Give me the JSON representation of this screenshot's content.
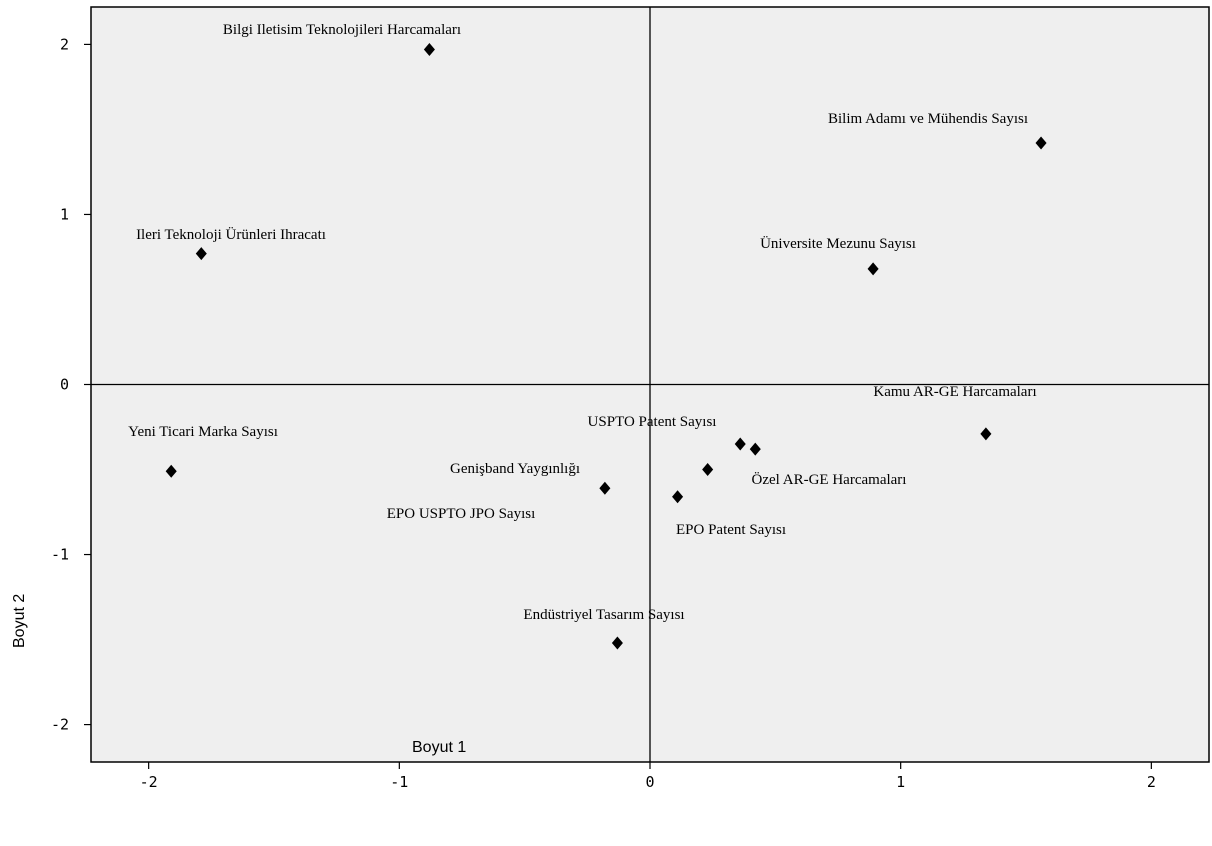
{
  "chart_data": {
    "type": "scatter",
    "xlabel": "Boyut 1",
    "ylabel": "Boyut 2",
    "xlim": [
      -2.23,
      2.23
    ],
    "ylim": [
      -2.22,
      2.22
    ],
    "x_ticks": [
      -2,
      -1,
      0,
      1,
      2
    ],
    "y_ticks": [
      -2,
      -1,
      0,
      1,
      2
    ],
    "x_tick_labels": [
      "-2",
      "-1",
      "0",
      "1",
      "2"
    ],
    "y_tick_labels": [
      "-2",
      "-1",
      "0",
      "1",
      "2"
    ],
    "reference_lines": {
      "x": 0,
      "y": 0
    },
    "grid": false,
    "marker": "diamond",
    "colors": {
      "background": "#efefef",
      "marker": "#000000",
      "frame": "#000000"
    },
    "points": [
      {
        "label": "Bilgi Iletisim Teknolojileri Harcamaları",
        "x": -0.88,
        "y": 1.97
      },
      {
        "label": "Bilim Adamı ve Mühendis Sayısı",
        "x": 1.56,
        "y": 1.42
      },
      {
        "label": "Ileri Teknoloji Ürünleri Ihracatı",
        "x": -1.79,
        "y": 0.77
      },
      {
        "label": "Üniversite Mezunu Sayısı",
        "x": 0.89,
        "y": 0.68
      },
      {
        "label": "Kamu AR-GE Harcamaları",
        "x": 1.34,
        "y": -0.29
      },
      {
        "label": "USPTO Patent Sayısı",
        "x": 0.36,
        "y": -0.35
      },
      {
        "label": "",
        "x": 0.42,
        "y": -0.38
      },
      {
        "label": "Özel AR-GE Harcamaları",
        "x": 0.23,
        "y": -0.5
      },
      {
        "label": "Yeni Ticari Marka Sayısı",
        "x": -1.91,
        "y": -0.51
      },
      {
        "label": "Genişband Yaygınlığı",
        "x": -0.18,
        "y": -0.61
      },
      {
        "label": "EPO USPTO JPO Sayısı",
        "x": 0,
        "y": 0,
        "label_only": true
      },
      {
        "label": "EPO Patent Sayısı",
        "x": 0.11,
        "y": -0.66
      },
      {
        "label": "Endüstriyel Tasarım Sayısı",
        "x": -0.13,
        "y": -1.52
      }
    ]
  }
}
